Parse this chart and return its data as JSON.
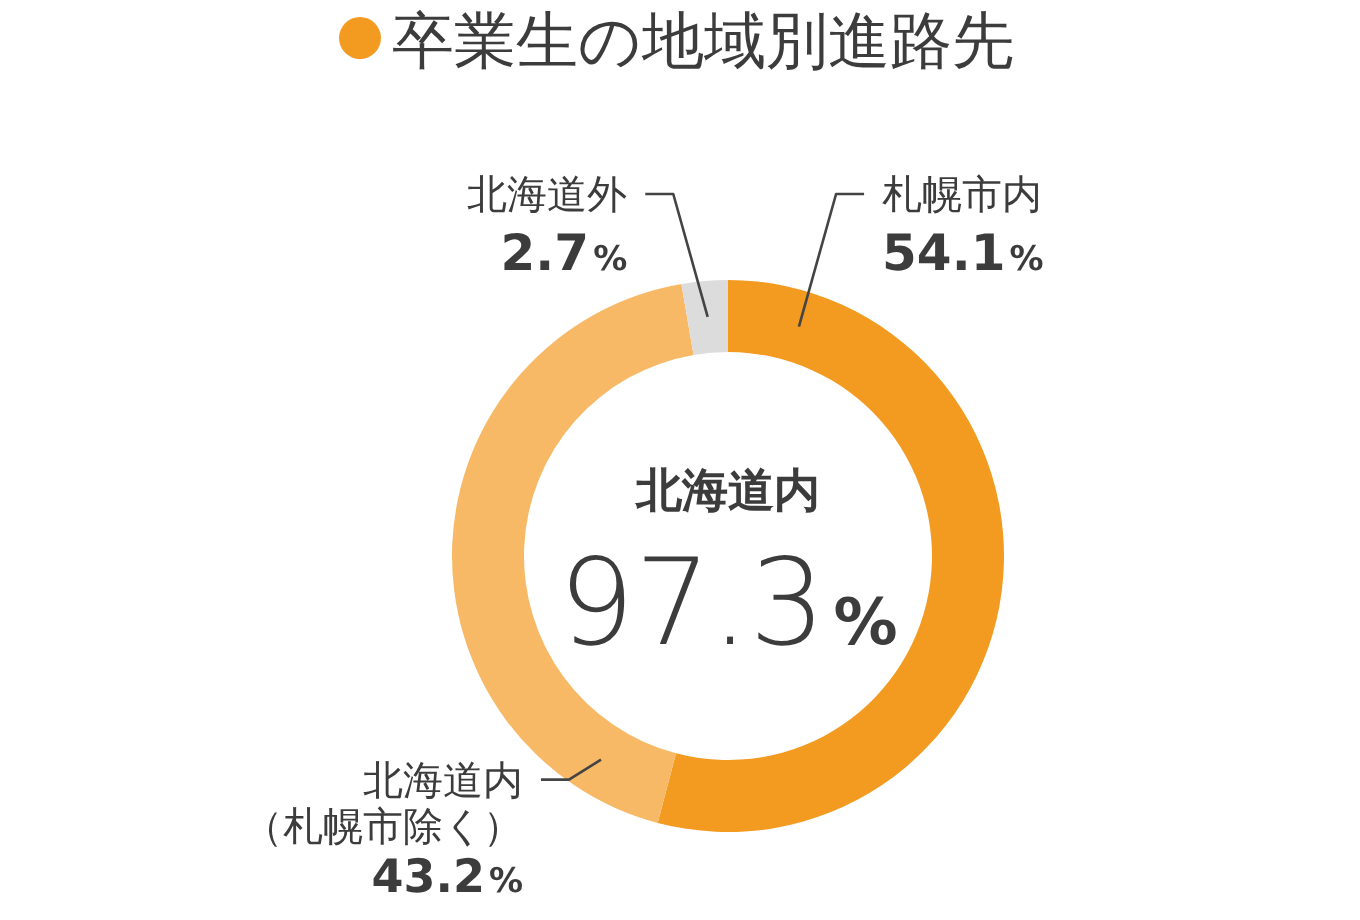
{
  "chart_data": {
    "type": "donut",
    "title": "卒業生の地域別進路先",
    "categories": [
      "札幌市内",
      "北海道内（札幌市除く）",
      "北海道外"
    ],
    "values": [
      54.1,
      43.2,
      2.7
    ],
    "colors": [
      "#f39a21",
      "#f7b966",
      "#dcdcdc"
    ],
    "value_labels": [
      "54.1%",
      "43.2%",
      "2.7%"
    ],
    "annotations": [
      "北海道内",
      "97.3%"
    ]
  }
}
